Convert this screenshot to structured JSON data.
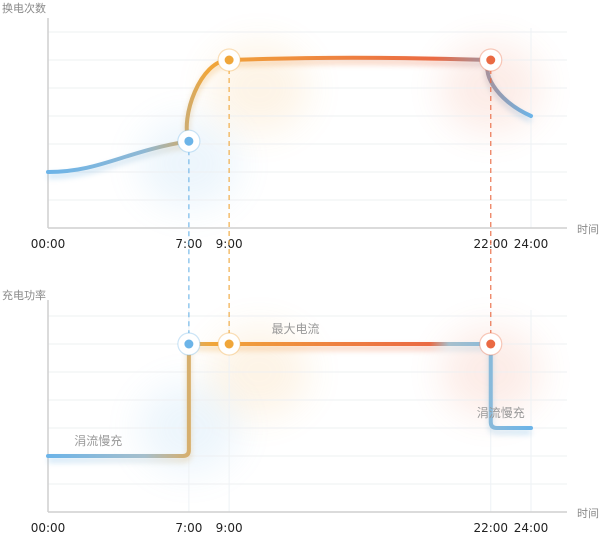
{
  "colors": {
    "blue": "#6cb4e8",
    "orange": "#f0a63a",
    "red": "#ea6a43",
    "grey": "#a6bfcc"
  },
  "chart_data": [
    {
      "type": "line",
      "ylabel": "换电次数",
      "xlabel": "时间",
      "x_ticks": [
        "00:00",
        "7:00",
        "9:00",
        "22:00",
        "24:00"
      ],
      "x": [
        0,
        7,
        9,
        22,
        24
      ],
      "values": [
        2,
        3.1,
        6,
        6,
        4
      ],
      "ylim": [
        0,
        7
      ],
      "grid": true,
      "markers": [
        {
          "x": 7,
          "color": "#6cb4e8"
        },
        {
          "x": 9,
          "color": "#f0a63a"
        },
        {
          "x": 22,
          "color": "#ea6a43"
        }
      ]
    },
    {
      "type": "line",
      "ylabel": "充电功率",
      "xlabel": "时间",
      "x_ticks": [
        "00:00",
        "7:00",
        "9:00",
        "22:00",
        "24:00"
      ],
      "x": [
        0,
        7,
        7,
        9,
        22,
        22,
        24
      ],
      "values": [
        2,
        2,
        6,
        6,
        6,
        3,
        3
      ],
      "ylim": [
        0,
        7
      ],
      "grid": true,
      "annotations": [
        {
          "text": "涓流慢充",
          "x": 2.5,
          "y": 2
        },
        {
          "text": "最大电流",
          "x": 12.3,
          "y": 6
        },
        {
          "text": "涓流慢充",
          "x": 22.5,
          "y": 3
        }
      ],
      "markers": [
        {
          "x": 7,
          "color": "#6cb4e8"
        },
        {
          "x": 9,
          "color": "#f0a63a"
        },
        {
          "x": 22,
          "color": "#ea6a43"
        }
      ]
    }
  ]
}
